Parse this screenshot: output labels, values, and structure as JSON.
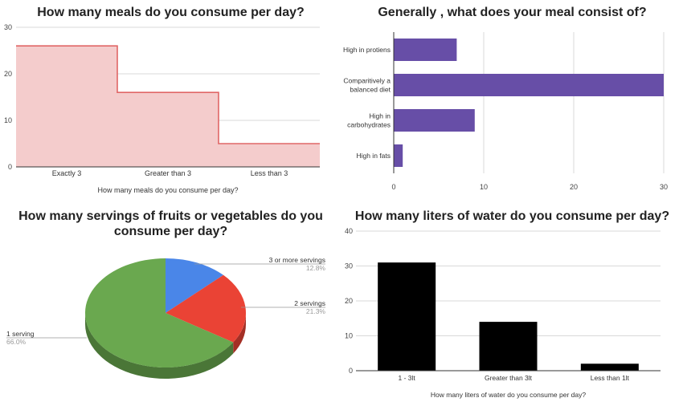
{
  "chart_data": [
    {
      "type": "area",
      "title": "How many meals do you consume per day?",
      "categories": [
        "Exactly 3",
        "Greater than 3",
        "Less than 3"
      ],
      "values": [
        26,
        16,
        5
      ],
      "xlabel": "How many meals do you consume per day?",
      "ylabel": "",
      "ylim": [
        0,
        30
      ],
      "yticks": [
        "0",
        "10",
        "20",
        "30"
      ],
      "colors": {
        "fill": "#f4cccc",
        "line": "#e06666"
      }
    },
    {
      "type": "bar",
      "orientation": "horizontal",
      "title": "Generally , what does your meal consist of?",
      "categories": [
        "High in protiens",
        "Comparitively a balanced diet",
        "High in carbohydrates",
        "High in fats"
      ],
      "category_lines": [
        [
          "High in protiens"
        ],
        [
          "Comparitively a",
          "balanced diet"
        ],
        [
          "High in",
          "carbohydrates"
        ],
        [
          "High in fats"
        ]
      ],
      "values": [
        7,
        30,
        9,
        1
      ],
      "xlim": [
        0,
        30
      ],
      "xticks": [
        "0",
        "10",
        "20",
        "30"
      ],
      "colors": {
        "bar": "#674ea7"
      }
    },
    {
      "type": "pie",
      "title_lines": [
        "How many servings of fruits or vegetables do you",
        "consume per day?"
      ],
      "slices": [
        {
          "label": "3 or more servings",
          "percent": "12.8%",
          "value": 12.8,
          "color": "#4a86e8"
        },
        {
          "label": "2 servings",
          "percent": "21.3%",
          "value": 21.3,
          "color": "#ea4335"
        },
        {
          "label": "1 serving",
          "percent": "66.0%",
          "value": 66.0,
          "color": "#6aa84f"
        }
      ]
    },
    {
      "type": "bar",
      "title": "How many liters of water do you consume per day?",
      "categories": [
        "1 - 3lt",
        "Greater than 3lt",
        "Less than 1lt"
      ],
      "values": [
        31,
        14,
        2
      ],
      "xlabel": "How many liters of water do you consume per day?",
      "ylim": [
        0,
        40
      ],
      "yticks": [
        "0",
        "10",
        "20",
        "30",
        "40"
      ],
      "colors": {
        "bar": "#000000"
      }
    }
  ]
}
